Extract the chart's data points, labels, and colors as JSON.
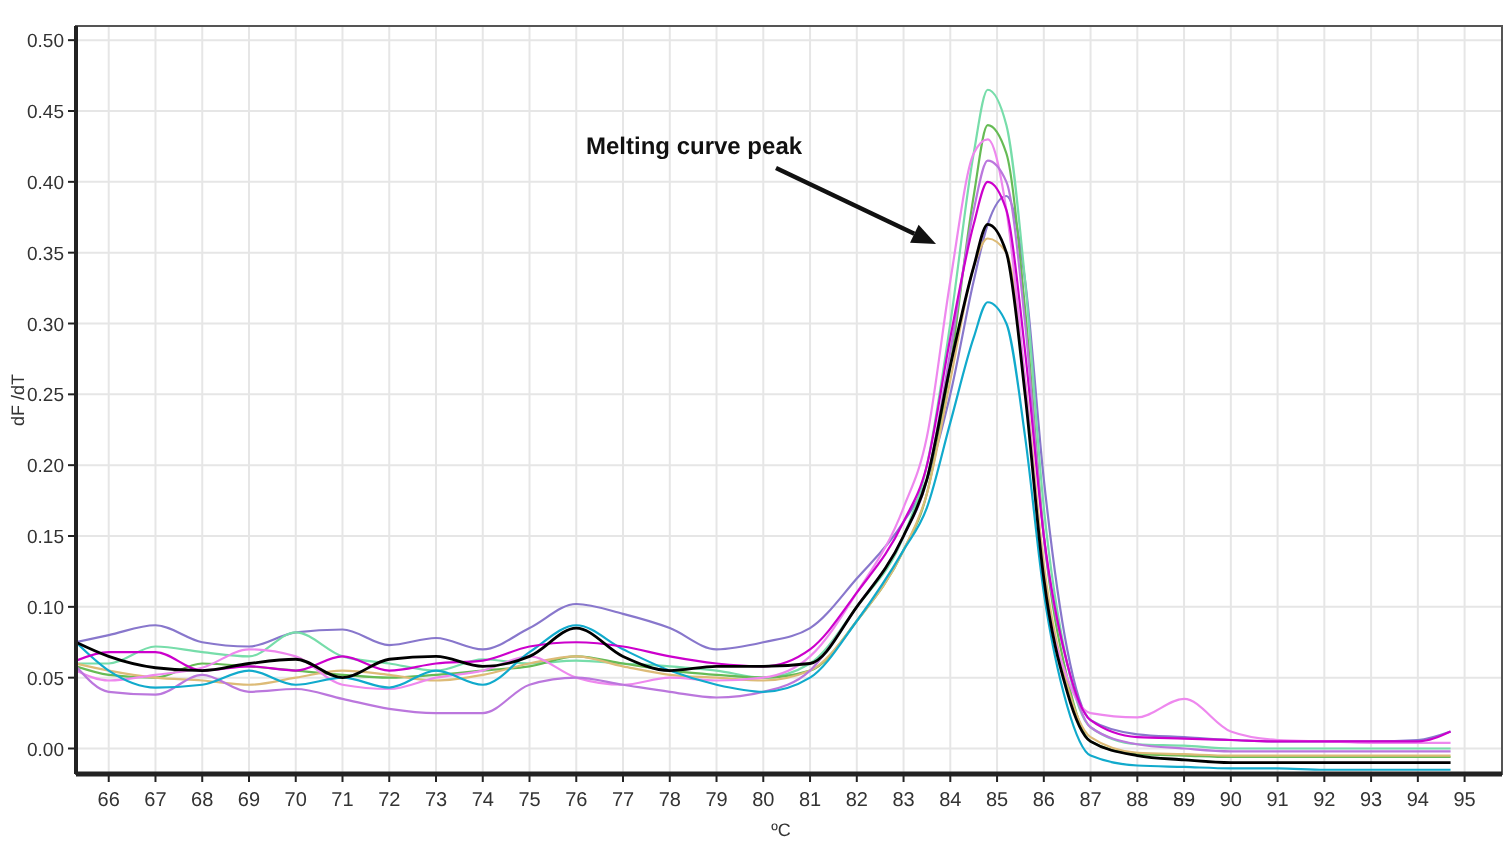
{
  "chart_data": {
    "type": "line",
    "xlabel": "ºC",
    "ylabel": "dF /dT",
    "x": [
      65.3,
      66,
      67,
      68,
      69,
      70,
      71,
      72,
      73,
      74,
      75,
      76,
      77,
      78,
      79,
      80,
      81,
      82,
      83,
      83.5,
      84,
      84.5,
      84.8,
      85.2,
      85.6,
      86,
      86.5,
      87,
      88,
      89,
      90,
      91,
      92,
      93,
      94,
      94.7
    ],
    "series": [
      {
        "color": "#8877cc",
        "values": [
          0.075,
          0.08,
          0.087,
          0.075,
          0.072,
          0.082,
          0.084,
          0.073,
          0.078,
          0.07,
          0.085,
          0.102,
          0.095,
          0.085,
          0.07,
          0.075,
          0.085,
          0.12,
          0.16,
          0.19,
          0.25,
          0.33,
          0.37,
          0.39,
          0.33,
          0.19,
          0.07,
          0.02,
          0.01,
          0.008,
          0.006,
          0.005,
          0.005,
          0.005,
          0.006,
          0.012
        ]
      },
      {
        "color": "#77ddaa",
        "values": [
          0.06,
          0.06,
          0.072,
          0.068,
          0.065,
          0.082,
          0.065,
          0.06,
          0.055,
          0.063,
          0.06,
          0.062,
          0.06,
          0.058,
          0.055,
          0.05,
          0.06,
          0.1,
          0.15,
          0.2,
          0.3,
          0.42,
          0.465,
          0.44,
          0.33,
          0.17,
          0.06,
          0.015,
          0.003,
          0.002,
          0.0,
          0.0,
          0.0,
          0.0,
          0.0,
          0.0
        ]
      },
      {
        "color": "#66bb55",
        "values": [
          0.058,
          0.052,
          0.05,
          0.06,
          0.058,
          0.055,
          0.052,
          0.05,
          0.052,
          0.055,
          0.058,
          0.065,
          0.06,
          0.055,
          0.052,
          0.05,
          0.055,
          0.09,
          0.14,
          0.18,
          0.27,
          0.39,
          0.44,
          0.42,
          0.31,
          0.15,
          0.05,
          0.005,
          -0.004,
          -0.005,
          -0.006,
          -0.006,
          -0.006,
          -0.006,
          -0.006,
          -0.006
        ]
      },
      {
        "color": "#ddbb77",
        "values": [
          0.06,
          0.055,
          0.05,
          0.048,
          0.045,
          0.05,
          0.055,
          0.052,
          0.048,
          0.052,
          0.06,
          0.065,
          0.058,
          0.052,
          0.05,
          0.048,
          0.055,
          0.09,
          0.14,
          0.18,
          0.26,
          0.34,
          0.36,
          0.35,
          0.26,
          0.13,
          0.045,
          0.008,
          -0.003,
          -0.004,
          -0.005,
          -0.005,
          -0.005,
          -0.005,
          -0.005,
          -0.005
        ]
      },
      {
        "color": "#ee88ee",
        "values": [
          0.055,
          0.048,
          0.052,
          0.057,
          0.07,
          0.065,
          0.045,
          0.042,
          0.05,
          0.055,
          0.065,
          0.05,
          0.045,
          0.05,
          0.048,
          0.05,
          0.065,
          0.11,
          0.17,
          0.22,
          0.33,
          0.42,
          0.43,
          0.38,
          0.26,
          0.12,
          0.05,
          0.025,
          0.022,
          0.035,
          0.012,
          0.006,
          0.005,
          0.004,
          0.004,
          0.004
        ]
      },
      {
        "color": "#bb77dd",
        "values": [
          0.058,
          0.04,
          0.038,
          0.052,
          0.04,
          0.042,
          0.035,
          0.028,
          0.025,
          0.025,
          0.045,
          0.05,
          0.045,
          0.04,
          0.036,
          0.04,
          0.055,
          0.1,
          0.15,
          0.19,
          0.28,
          0.38,
          0.415,
          0.4,
          0.3,
          0.15,
          0.06,
          0.015,
          0.003,
          0.0,
          -0.002,
          -0.002,
          -0.002,
          -0.002,
          -0.002,
          -0.002
        ]
      },
      {
        "color": "#11aacc",
        "values": [
          0.075,
          0.055,
          0.043,
          0.045,
          0.055,
          0.045,
          0.05,
          0.043,
          0.055,
          0.045,
          0.068,
          0.087,
          0.07,
          0.055,
          0.045,
          0.04,
          0.05,
          0.09,
          0.14,
          0.17,
          0.23,
          0.29,
          0.315,
          0.3,
          0.22,
          0.11,
          0.03,
          -0.005,
          -0.012,
          -0.013,
          -0.014,
          -0.014,
          -0.015,
          -0.015,
          -0.015,
          -0.015
        ]
      },
      {
        "color": "#cc00cc",
        "values": [
          0.062,
          0.068,
          0.068,
          0.055,
          0.058,
          0.055,
          0.065,
          0.055,
          0.06,
          0.062,
          0.072,
          0.075,
          0.072,
          0.065,
          0.06,
          0.058,
          0.07,
          0.11,
          0.16,
          0.2,
          0.29,
          0.37,
          0.4,
          0.38,
          0.28,
          0.15,
          0.06,
          0.02,
          0.008,
          0.007,
          0.006,
          0.005,
          0.005,
          0.005,
          0.005,
          0.012
        ]
      },
      {
        "color": "#000000",
        "values": [
          0.075,
          0.065,
          0.057,
          0.055,
          0.06,
          0.063,
          0.05,
          0.063,
          0.065,
          0.058,
          0.065,
          0.085,
          0.065,
          0.055,
          0.058,
          0.058,
          0.06,
          0.1,
          0.15,
          0.19,
          0.27,
          0.34,
          0.37,
          0.35,
          0.25,
          0.12,
          0.04,
          0.005,
          -0.005,
          -0.008,
          -0.01,
          -0.01,
          -0.01,
          -0.01,
          -0.01,
          -0.01
        ]
      }
    ],
    "xlim": [
      65.3,
      95.8
    ],
    "xticks": [
      66,
      67,
      68,
      69,
      70,
      71,
      72,
      73,
      74,
      75,
      76,
      77,
      78,
      79,
      80,
      81,
      82,
      83,
      84,
      85,
      86,
      87,
      88,
      89,
      90,
      91,
      92,
      93,
      94,
      95
    ],
    "ylim": [
      -0.018,
      0.51
    ],
    "yticks": [
      {
        "value": 0,
        "label": "0.00"
      },
      {
        "value": 0.05,
        "label": "0.05"
      },
      {
        "value": 0.1,
        "label": "0.10"
      },
      {
        "value": 0.15,
        "label": "0.15"
      },
      {
        "value": 0.2,
        "label": "0.20"
      },
      {
        "value": 0.25,
        "label": "0.25"
      },
      {
        "value": 0.3,
        "label": "0.30"
      },
      {
        "value": 0.35,
        "label": "0.35"
      },
      {
        "value": 0.4,
        "label": "0.40"
      },
      {
        "value": 0.45,
        "label": "0.45"
      },
      {
        "value": 0.5,
        "label": "0.50"
      }
    ],
    "grid": true,
    "annotations": [
      "Melting curve peak"
    ]
  }
}
